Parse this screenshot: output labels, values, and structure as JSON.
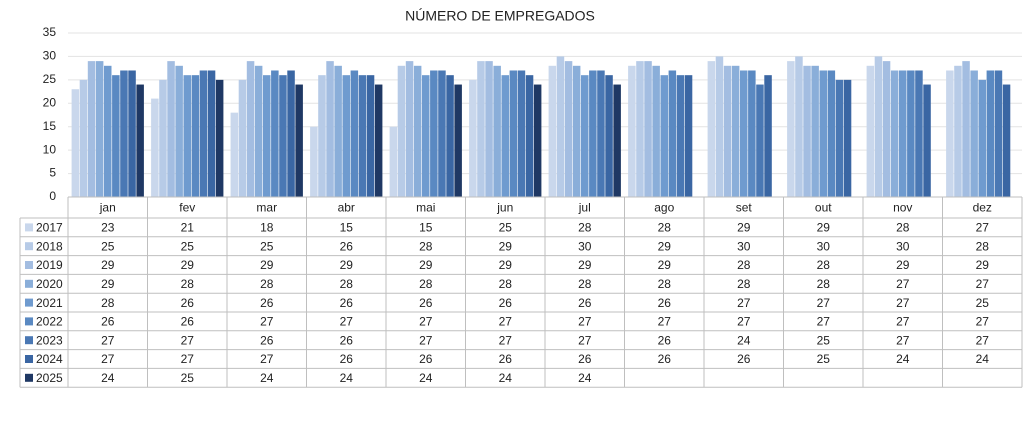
{
  "chart_data": {
    "type": "bar",
    "title": "NÚMERO DE EMPREGADOS",
    "categories": [
      "jan",
      "fev",
      "mar",
      "abr",
      "mai",
      "jun",
      "jul",
      "ago",
      "set",
      "out",
      "nov",
      "dez"
    ],
    "series": [
      {
        "name": "2017",
        "color": "#c9d7ec",
        "values": [
          23,
          21,
          18,
          15,
          15,
          25,
          28,
          28,
          29,
          29,
          28,
          27
        ]
      },
      {
        "name": "2018",
        "color": "#b7cbe7",
        "values": [
          25,
          25,
          25,
          26,
          28,
          29,
          30,
          29,
          30,
          30,
          30,
          28
        ]
      },
      {
        "name": "2019",
        "color": "#a3bde1",
        "values": [
          29,
          29,
          29,
          29,
          29,
          29,
          29,
          29,
          28,
          28,
          29,
          29
        ]
      },
      {
        "name": "2020",
        "color": "#8aaed9",
        "values": [
          29,
          28,
          28,
          28,
          28,
          28,
          28,
          28,
          28,
          28,
          27,
          27
        ]
      },
      {
        "name": "2021",
        "color": "#6f9bcf",
        "values": [
          28,
          26,
          26,
          26,
          26,
          26,
          26,
          26,
          27,
          27,
          27,
          25
        ]
      },
      {
        "name": "2022",
        "color": "#5a89c2",
        "values": [
          26,
          26,
          27,
          27,
          27,
          27,
          27,
          27,
          27,
          27,
          27,
          27
        ]
      },
      {
        "name": "2023",
        "color": "#4a78b4",
        "values": [
          27,
          27,
          26,
          26,
          27,
          27,
          27,
          26,
          24,
          25,
          27,
          27
        ]
      },
      {
        "name": "2024",
        "color": "#3a66a3",
        "values": [
          27,
          27,
          27,
          26,
          26,
          26,
          26,
          26,
          26,
          25,
          24,
          24
        ]
      },
      {
        "name": "2025",
        "color": "#1f3864",
        "values": [
          24,
          25,
          24,
          24,
          24,
          24,
          24,
          null,
          null,
          null,
          null,
          null
        ]
      }
    ],
    "ylim": [
      0,
      35
    ],
    "yticks": [
      0,
      5,
      10,
      15,
      20,
      25,
      30,
      35
    ],
    "grid": true
  }
}
